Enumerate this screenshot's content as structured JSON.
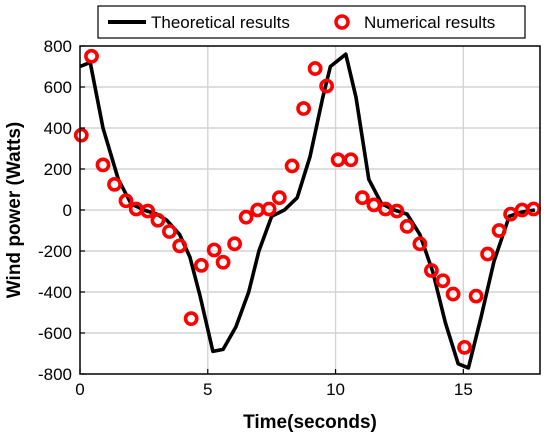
{
  "chart_data": {
    "type": "line",
    "xlabel": "Time(seconds)",
    "ylabel": "Wind power (Watts)",
    "xlim": [
      0,
      18
    ],
    "ylim": [
      -800,
      800
    ],
    "xticks": [
      0,
      5,
      10,
      15
    ],
    "yticks": [
      -800,
      -600,
      -400,
      -200,
      0,
      200,
      400,
      600,
      800
    ],
    "grid": true,
    "legend_position": "top",
    "series": [
      {
        "name": "Theoretical results",
        "style": "line",
        "color": "#000000",
        "x": [
          0,
          0.4,
          0.9,
          1.5,
          2.0,
          2.5,
          3.0,
          3.4,
          3.9,
          4.3,
          4.7,
          5.2,
          5.6,
          6.1,
          6.6,
          7.0,
          7.5,
          8.0,
          8.5,
          9.0,
          9.5,
          9.8,
          10.4,
          10.8,
          11.3,
          11.8,
          12.3,
          12.8,
          13.3,
          13.8,
          14.3,
          14.8,
          15.2,
          15.7,
          16.2,
          16.8,
          17.3,
          17.8
        ],
        "y": [
          700,
          720,
          400,
          150,
          30,
          0,
          -20,
          -50,
          -120,
          -230,
          -420,
          -690,
          -680,
          -570,
          -400,
          -200,
          -30,
          0,
          60,
          260,
          550,
          700,
          760,
          550,
          150,
          30,
          0,
          -20,
          -120,
          -300,
          -550,
          -750,
          -770,
          -520,
          -250,
          -30,
          -10,
          0
        ]
      },
      {
        "name": "Numerical results",
        "style": "scatter",
        "color": "#ff0000",
        "x": [
          0.05,
          0.45,
          0.9,
          1.35,
          1.8,
          2.2,
          2.65,
          3.05,
          3.5,
          3.9,
          4.35,
          4.75,
          5.25,
          5.6,
          6.05,
          6.5,
          6.95,
          7.4,
          7.8,
          8.3,
          8.75,
          9.2,
          9.65,
          10.1,
          10.6,
          11.05,
          11.5,
          11.95,
          12.4,
          12.8,
          13.3,
          13.75,
          14.2,
          14.6,
          15.05,
          15.5,
          15.95,
          16.4,
          16.85,
          17.3,
          17.75
        ],
        "y": [
          365,
          750,
          220,
          125,
          45,
          5,
          -5,
          -50,
          -105,
          -175,
          -530,
          -270,
          -195,
          -255,
          -165,
          -35,
          0,
          5,
          60,
          215,
          495,
          690,
          605,
          245,
          245,
          60,
          25,
          5,
          -5,
          -80,
          -165,
          -295,
          -345,
          -410,
          -670,
          -420,
          -215,
          -100,
          -20,
          0,
          5
        ]
      }
    ]
  }
}
